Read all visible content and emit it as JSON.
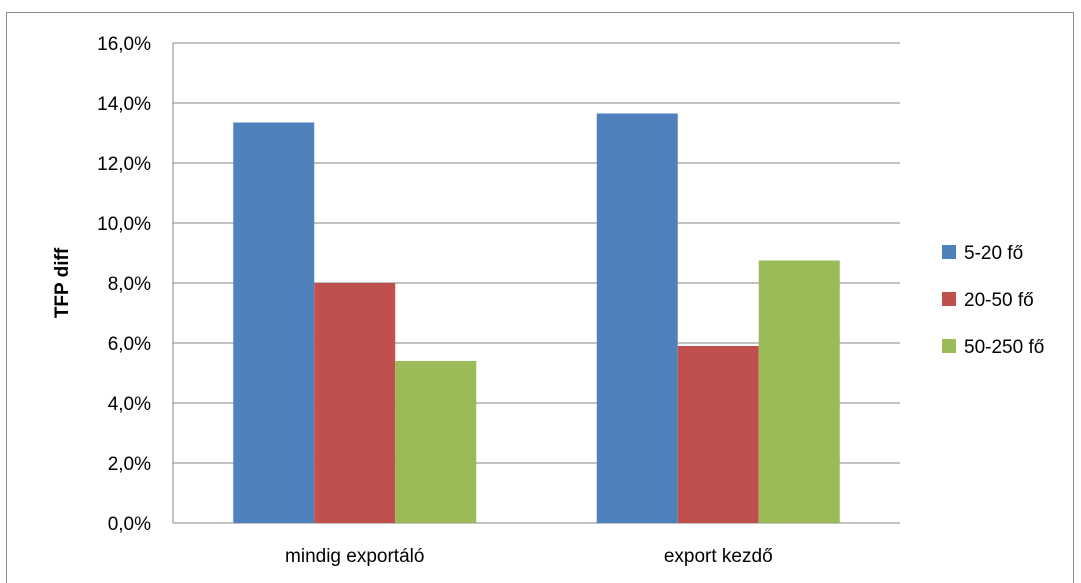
{
  "chart_data": {
    "type": "bar",
    "title": "",
    "xlabel": "",
    "ylabel": "TFP diff",
    "categories": [
      "mindig exportáló",
      "export kezdő"
    ],
    "series": [
      {
        "name": "5-20 fő",
        "values": [
          13.35,
          13.65
        ],
        "color": "#4f81bd"
      },
      {
        "name": "20-50 fő",
        "values": [
          8.0,
          5.9
        ],
        "color": "#c0504d"
      },
      {
        "name": "50-250 fő",
        "values": [
          5.4,
          8.75
        ],
        "color": "#9bbb59"
      }
    ],
    "ylim": [
      0,
      16
    ],
    "yticks": [
      0,
      2,
      4,
      6,
      8,
      10,
      12,
      14,
      16
    ],
    "ytick_labels": [
      "0,0%",
      "2,0%",
      "4,0%",
      "6,0%",
      "8,0%",
      "10,0%",
      "12,0%",
      "14,0%",
      "16,0%"
    ],
    "grid": true,
    "legend": "right",
    "grid_color": "#868686"
  }
}
